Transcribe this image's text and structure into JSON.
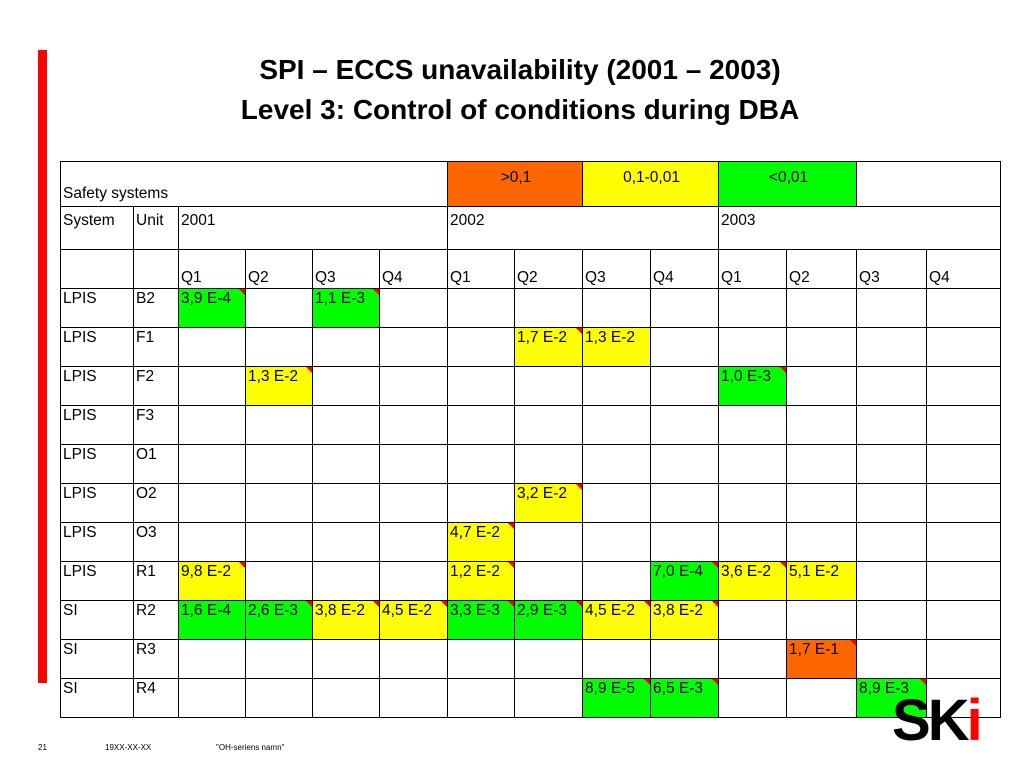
{
  "slide": {
    "title_line1": "SPI – ECCS unavailability (2001 – 2003)",
    "title_line2": "Level 3: Control of conditions during DBA",
    "page_number": "21",
    "date": "19XX-XX-XX",
    "series_name": "\"OH-seriens namn\"",
    "logo_text": "SKi",
    "accent_color": "#ff0000"
  },
  "table": {
    "header": {
      "safety_systems": "Safety systems",
      "legend": [
        {
          "label": ">0,1",
          "color": "#ff6600"
        },
        {
          "label": "0,1-0,01",
          "color": "#ffff00"
        },
        {
          "label": "<0,01",
          "color": "#00ff00"
        }
      ],
      "system_label": "System",
      "unit_label": "Unit",
      "years": [
        "2001",
        "2002",
        "2003"
      ],
      "quarters": [
        "Q1",
        "Q2",
        "Q3",
        "Q4",
        "Q1",
        "Q2",
        "Q3",
        "Q4",
        "Q1",
        "Q2",
        "Q3",
        "Q4"
      ]
    },
    "rows": [
      {
        "system": "LPIS",
        "unit": "B2",
        "cells": [
          {
            "v": "3,9 E-4",
            "c": "g",
            "m": true
          },
          {
            "v": ""
          },
          {
            "v": "1,1 E-3",
            "c": "g",
            "m": true
          },
          {
            "v": ""
          },
          {
            "v": ""
          },
          {
            "v": ""
          },
          {
            "v": ""
          },
          {
            "v": ""
          },
          {
            "v": ""
          },
          {
            "v": ""
          },
          {
            "v": ""
          },
          {
            "v": ""
          }
        ]
      },
      {
        "system": "LPIS",
        "unit": "F1",
        "cells": [
          {
            "v": ""
          },
          {
            "v": ""
          },
          {
            "v": ""
          },
          {
            "v": ""
          },
          {
            "v": ""
          },
          {
            "v": "1,7 E-2",
            "c": "y",
            "m": true
          },
          {
            "v": "1,3 E-2",
            "c": "y"
          },
          {
            "v": ""
          },
          {
            "v": ""
          },
          {
            "v": ""
          },
          {
            "v": ""
          },
          {
            "v": ""
          }
        ]
      },
      {
        "system": "LPIS",
        "unit": "F2",
        "cells": [
          {
            "v": ""
          },
          {
            "v": "1,3 E-2",
            "c": "y",
            "m": true
          },
          {
            "v": ""
          },
          {
            "v": ""
          },
          {
            "v": ""
          },
          {
            "v": ""
          },
          {
            "v": ""
          },
          {
            "v": ""
          },
          {
            "v": "1,0 E-3",
            "c": "g",
            "m": true
          },
          {
            "v": ""
          },
          {
            "v": ""
          },
          {
            "v": ""
          }
        ]
      },
      {
        "system": "LPIS",
        "unit": "F3",
        "cells": [
          {
            "v": ""
          },
          {
            "v": ""
          },
          {
            "v": ""
          },
          {
            "v": ""
          },
          {
            "v": ""
          },
          {
            "v": ""
          },
          {
            "v": ""
          },
          {
            "v": ""
          },
          {
            "v": ""
          },
          {
            "v": ""
          },
          {
            "v": ""
          },
          {
            "v": ""
          }
        ]
      },
      {
        "system": "LPIS",
        "unit": "O1",
        "cells": [
          {
            "v": ""
          },
          {
            "v": ""
          },
          {
            "v": ""
          },
          {
            "v": ""
          },
          {
            "v": ""
          },
          {
            "v": ""
          },
          {
            "v": ""
          },
          {
            "v": ""
          },
          {
            "v": ""
          },
          {
            "v": ""
          },
          {
            "v": ""
          },
          {
            "v": ""
          }
        ]
      },
      {
        "system": "LPIS",
        "unit": "O2",
        "cells": [
          {
            "v": ""
          },
          {
            "v": ""
          },
          {
            "v": ""
          },
          {
            "v": ""
          },
          {
            "v": ""
          },
          {
            "v": "3,2 E-2",
            "c": "y",
            "m": true
          },
          {
            "v": ""
          },
          {
            "v": ""
          },
          {
            "v": ""
          },
          {
            "v": ""
          },
          {
            "v": ""
          },
          {
            "v": ""
          }
        ]
      },
      {
        "system": "LPIS",
        "unit": "O3",
        "cells": [
          {
            "v": ""
          },
          {
            "v": ""
          },
          {
            "v": ""
          },
          {
            "v": ""
          },
          {
            "v": "4,7 E-2",
            "c": "y",
            "m": true
          },
          {
            "v": ""
          },
          {
            "v": ""
          },
          {
            "v": ""
          },
          {
            "v": ""
          },
          {
            "v": ""
          },
          {
            "v": ""
          },
          {
            "v": ""
          }
        ]
      },
      {
        "system": "LPIS",
        "unit": "R1",
        "cells": [
          {
            "v": "9,8 E-2",
            "c": "y",
            "m": true
          },
          {
            "v": ""
          },
          {
            "v": ""
          },
          {
            "v": ""
          },
          {
            "v": "1,2 E-2",
            "c": "y",
            "m": true
          },
          {
            "v": ""
          },
          {
            "v": ""
          },
          {
            "v": "7,0 E-4",
            "c": "g",
            "m": true
          },
          {
            "v": "3,6 E-2",
            "c": "y",
            "m": true
          },
          {
            "v": "5,1 E-2",
            "c": "y"
          },
          {
            "v": ""
          },
          {
            "v": ""
          }
        ]
      },
      {
        "system": "SI",
        "unit": "R2",
        "cells": [
          {
            "v": "1,6 E-4",
            "c": "g"
          },
          {
            "v": "2,6 E-3",
            "c": "g",
            "m": true
          },
          {
            "v": "3,8 E-2",
            "c": "y",
            "m": true
          },
          {
            "v": "4,5 E-2",
            "c": "y",
            "m": true
          },
          {
            "v": "3,3 E-3",
            "c": "g",
            "m": true
          },
          {
            "v": "2,9 E-3",
            "c": "g",
            "m": true
          },
          {
            "v": "4,5 E-2",
            "c": "y",
            "m": true
          },
          {
            "v": "3,8 E-2",
            "c": "y",
            "m": true
          },
          {
            "v": ""
          },
          {
            "v": ""
          },
          {
            "v": ""
          },
          {
            "v": ""
          }
        ]
      },
      {
        "system": "SI",
        "unit": "R3",
        "cells": [
          {
            "v": ""
          },
          {
            "v": ""
          },
          {
            "v": ""
          },
          {
            "v": ""
          },
          {
            "v": ""
          },
          {
            "v": ""
          },
          {
            "v": ""
          },
          {
            "v": ""
          },
          {
            "v": ""
          },
          {
            "v": "1,7 E-1",
            "c": "o",
            "m": true
          },
          {
            "v": ""
          },
          {
            "v": ""
          }
        ]
      },
      {
        "system": "SI",
        "unit": "R4",
        "cells": [
          {
            "v": ""
          },
          {
            "v": ""
          },
          {
            "v": ""
          },
          {
            "v": ""
          },
          {
            "v": ""
          },
          {
            "v": ""
          },
          {
            "v": "8,9 E-5",
            "c": "g",
            "m": true
          },
          {
            "v": "6,5 E-3",
            "c": "g",
            "m": true
          },
          {
            "v": ""
          },
          {
            "v": ""
          },
          {
            "v": "8,9 E-3",
            "c": "g",
            "m": true
          },
          {
            "v": ""
          }
        ]
      }
    ]
  }
}
